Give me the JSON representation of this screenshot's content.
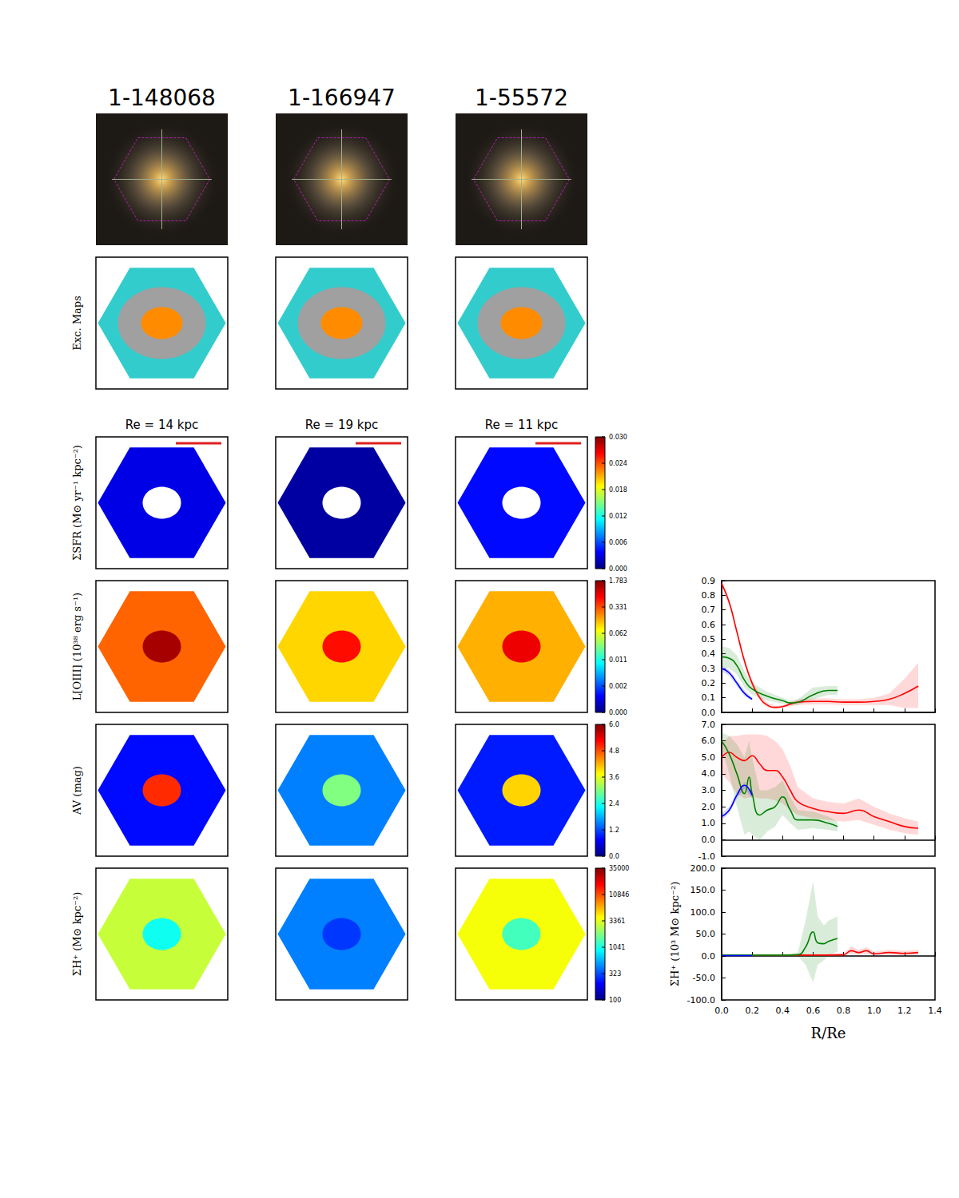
{
  "figure": {
    "row_labels": {
      "exc": "Exc. Maps",
      "sfr": "ΣSFR (M⊙ yr⁻¹ kpc⁻²)",
      "oiii": "L[OIII] (10³⁸ erg s⁻¹)",
      "av": "AV (mag)",
      "sigma_h": "ΣH⁺ (M⊙ kpc⁻²)"
    },
    "exc_map_colors": {
      "outer": "#33cccc",
      "ring": "#a0a0a0",
      "core": "#ff8c00"
    },
    "galaxies": [
      {
        "id": "1-148068",
        "re_label": "Re = 14 kpc",
        "maps": {
          "sfr": {
            "disk": 0.003,
            "center": null
          },
          "oiii": {
            "disk": 0.3,
            "center": 1.5
          },
          "av": {
            "disk": 0.8,
            "center": 5.0
          },
          "sigma_h": {
            "disk": 3000,
            "center": 1000
          }
        }
      },
      {
        "id": "1-166947",
        "re_label": "Re = 19 kpc",
        "maps": {
          "sfr": {
            "disk": 0.001,
            "center": null
          },
          "oiii": {
            "disk": 0.15,
            "center": 0.8
          },
          "av": {
            "disk": 1.5,
            "center": 3.0
          },
          "sigma_h": {
            "disk": 500,
            "center": 300
          }
        }
      },
      {
        "id": "1-55572",
        "re_label": "Re = 11 kpc",
        "maps": {
          "sfr": {
            "disk": 0.004,
            "center": null
          },
          "oiii": {
            "disk": 0.2,
            "center": 1.0
          },
          "av": {
            "disk": 0.9,
            "center": 4.0
          },
          "sigma_h": {
            "disk": 4000,
            "center": 1500
          }
        }
      }
    ],
    "colorbars": {
      "sfr": [
        {
          "value": 0,
          "label": "0.000"
        },
        {
          "value": 0.006,
          "label": "0.006"
        },
        {
          "value": 0.012,
          "label": "0.012"
        },
        {
          "value": 0.018,
          "label": "0.018"
        },
        {
          "value": 0.024,
          "label": "0.024"
        },
        {
          "value": 0.03,
          "label": "0.030"
        }
      ],
      "oiii": [
        {
          "value": 0,
          "label": "0.000"
        },
        {
          "value": 0.002,
          "label": "0.002"
        },
        0.011,
        0.062,
        0.331,
        1.783
      ],
      "av": [
        {
          "value": 0,
          "label": "0.0"
        },
        1.2,
        2.4,
        3.6,
        4.8,
        {
          "value": 6,
          "label": "6.0"
        }
      ],
      "sigma_h": [
        100,
        323,
        1041,
        3361,
        10846,
        35000
      ]
    }
  },
  "chart_data": [
    {
      "type": "line",
      "xlim": [
        0,
        1.4
      ],
      "xticks": [
        {
          "value": 0,
          "label": "0.0"
        },
        0.2,
        0.4,
        0.6,
        0.8,
        {
          "value": 1,
          "label": "1.0"
        },
        1.2,
        1.4
      ],
      "ylim": [
        0,
        0.9
      ],
      "yticks": [
        {
          "value": 0,
          "label": "0.0"
        },
        0.1,
        0.2,
        0.3,
        0.4,
        0.5,
        0.6,
        0.7,
        0.8,
        0.9
      ],
      "tick_labels": "y",
      "grid": false,
      "series": [
        {
          "color": "#ff0000",
          "x": [
            0,
            0.05,
            0.1,
            0.15,
            0.2,
            0.25,
            0.3,
            0.35,
            0.4,
            0.5,
            0.6,
            0.7,
            0.8,
            0.9,
            1.0,
            1.1,
            1.2,
            1.29
          ],
          "values": [
            0.88,
            0.75,
            0.55,
            0.35,
            0.2,
            0.1,
            0.05,
            0.035,
            0.04,
            0.07,
            0.075,
            0.075,
            0.07,
            0.07,
            0.075,
            0.09,
            0.13,
            0.18
          ],
          "lower": [
            0.86,
            0.73,
            0.53,
            0.33,
            0.18,
            0.08,
            0.035,
            0.025,
            0.03,
            0.05,
            0.055,
            0.055,
            0.05,
            0.05,
            0.05,
            0.05,
            0.03,
            0.03
          ],
          "upper": [
            0.9,
            0.77,
            0.57,
            0.37,
            0.22,
            0.12,
            0.065,
            0.045,
            0.05,
            0.09,
            0.095,
            0.095,
            0.09,
            0.09,
            0.1,
            0.13,
            0.23,
            0.34
          ]
        },
        {
          "color": "#008000",
          "x": [
            0,
            0.05,
            0.1,
            0.15,
            0.2,
            0.3,
            0.4,
            0.45,
            0.5,
            0.6,
            0.7,
            0.76
          ],
          "values": [
            0.38,
            0.37,
            0.32,
            0.22,
            0.16,
            0.11,
            0.08,
            0.065,
            0.07,
            0.12,
            0.15,
            0.15
          ],
          "lower": [
            0.31,
            0.3,
            0.26,
            0.17,
            0.12,
            0.08,
            0.06,
            0.05,
            0.05,
            0.09,
            0.12,
            0.12
          ],
          "upper": [
            0.45,
            0.44,
            0.39,
            0.28,
            0.2,
            0.14,
            0.1,
            0.08,
            0.09,
            0.17,
            0.18,
            0.18
          ]
        },
        {
          "color": "#0000ff",
          "x": [
            0,
            0.05,
            0.1,
            0.15,
            0.2
          ],
          "values": [
            0.3,
            0.27,
            0.2,
            0.13,
            0.09
          ],
          "lower": [
            0.28,
            0.25,
            0.18,
            0.11,
            0.08
          ],
          "upper": [
            0.32,
            0.29,
            0.22,
            0.15,
            0.1
          ]
        }
      ]
    },
    {
      "type": "line",
      "xlim": [
        0,
        1.4
      ],
      "xticks": [
        {
          "value": 0,
          "label": "0.0"
        },
        0.2,
        0.4,
        0.6,
        0.8,
        {
          "value": 1,
          "label": "1.0"
        },
        1.2,
        1.4
      ],
      "ylim": [
        -1,
        7
      ],
      "yticks": [
        {
          "value": -1,
          "label": "-1.0"
        },
        {
          "value": 0,
          "label": "0.0"
        },
        {
          "value": 1,
          "label": "1.0"
        },
        {
          "value": 2,
          "label": "2.0"
        },
        {
          "value": 3,
          "label": "3.0"
        },
        {
          "value": 4,
          "label": "4.0"
        },
        {
          "value": 5,
          "label": "5.0"
        },
        {
          "value": 6,
          "label": "6.0"
        },
        {
          "value": 7,
          "label": "7.0"
        }
      ],
      "tick_labels": "y",
      "grid": false,
      "series": [
        {
          "color": "#ff0000",
          "x": [
            0,
            0.05,
            0.1,
            0.15,
            0.2,
            0.25,
            0.3,
            0.35,
            0.4,
            0.45,
            0.5,
            0.6,
            0.7,
            0.8,
            0.9,
            1.0,
            1.1,
            1.2,
            1.29
          ],
          "values": [
            5.0,
            5.3,
            5.0,
            4.8,
            5.1,
            4.6,
            4.2,
            4.2,
            3.8,
            3.0,
            2.3,
            1.9,
            1.7,
            1.6,
            1.8,
            1.4,
            1.1,
            0.8,
            0.7
          ],
          "lower": [
            4.0,
            3.5,
            2.8,
            2.5,
            2.6,
            2.5,
            2.5,
            2.4,
            2.2,
            1.8,
            1.5,
            1.3,
            1.2,
            1.1,
            1.2,
            0.9,
            0.6,
            0.4,
            0.3
          ],
          "upper": [
            5.8,
            6.3,
            6.3,
            6.4,
            6.4,
            6.4,
            6.3,
            6.0,
            5.5,
            4.5,
            3.2,
            2.5,
            2.3,
            2.2,
            2.5,
            2.0,
            1.6,
            1.3,
            1.1
          ]
        },
        {
          "color": "#008000",
          "x": [
            0,
            0.05,
            0.1,
            0.15,
            0.18,
            0.2,
            0.25,
            0.3,
            0.35,
            0.4,
            0.45,
            0.5,
            0.6,
            0.7,
            0.76
          ],
          "values": [
            6.0,
            5.2,
            4.0,
            2.8,
            3.8,
            2.8,
            1.5,
            1.8,
            2.0,
            2.6,
            1.8,
            1.2,
            1.2,
            1.0,
            0.8
          ],
          "lower": [
            5.5,
            4.0,
            2.0,
            0.3,
            0.5,
            0.3,
            0.0,
            0.5,
            0.8,
            1.5,
            1.0,
            0.6,
            0.7,
            0.6,
            0.5
          ],
          "upper": [
            6.5,
            6.3,
            5.8,
            5.0,
            6.0,
            5.0,
            3.0,
            3.0,
            3.2,
            3.6,
            2.6,
            1.8,
            1.7,
            1.4,
            1.1
          ]
        },
        {
          "color": "#0000ff",
          "x": [
            0,
            0.05,
            0.1,
            0.15,
            0.2
          ],
          "values": [
            1.4,
            1.8,
            2.7,
            3.3,
            2.7
          ],
          "lower": [
            1.2,
            1.6,
            2.5,
            3.1,
            2.5
          ],
          "upper": [
            1.6,
            2.0,
            2.9,
            3.5,
            2.9
          ]
        }
      ]
    },
    {
      "type": "line",
      "xlabel": "R/Re",
      "ylabel": "ΣH⁺ (10³ M⊙ kpc⁻²)",
      "xlim": [
        0,
        1.4
      ],
      "xticks": [
        {
          "value": 0,
          "label": "0.0"
        },
        0.2,
        0.4,
        0.6,
        0.8,
        {
          "value": 1,
          "label": "1.0"
        },
        1.2,
        1.4
      ],
      "ylim": [
        -100,
        200
      ],
      "yticks": [
        {
          "value": -100,
          "label": "-100.0"
        },
        {
          "value": -50,
          "label": "-50.0"
        },
        {
          "value": 0,
          "label": "0.0"
        },
        {
          "value": 50,
          "label": "50.0"
        },
        {
          "value": 100,
          "label": "100.0"
        },
        {
          "value": 150,
          "label": "150.0"
        },
        {
          "value": 200,
          "label": "200.0"
        }
      ],
      "grid": false,
      "series": [
        {
          "color": "#ff0000",
          "x": [
            0,
            0.2,
            0.4,
            0.6,
            0.8,
            0.85,
            0.9,
            0.95,
            1.0,
            1.1,
            1.2,
            1.29
          ],
          "values": [
            2,
            2,
            2,
            2,
            3,
            12,
            8,
            12,
            5,
            8,
            6,
            8
          ],
          "lower": [
            1,
            1,
            1,
            1,
            1,
            4,
            3,
            4,
            2,
            3,
            2,
            3
          ],
          "upper": [
            3,
            3,
            3,
            3,
            6,
            22,
            14,
            20,
            10,
            14,
            12,
            14
          ]
        },
        {
          "color": "#008000",
          "x": [
            0,
            0.2,
            0.4,
            0.5,
            0.55,
            0.6,
            0.63,
            0.67,
            0.7,
            0.76
          ],
          "values": [
            2,
            2,
            2,
            3,
            20,
            55,
            30,
            28,
            33,
            40
          ],
          "lower": [
            1,
            1,
            1,
            0,
            -20,
            -60,
            -20,
            -10,
            0,
            10
          ],
          "upper": [
            3,
            3,
            3,
            8,
            80,
            170,
            90,
            70,
            80,
            90
          ]
        },
        {
          "color": "#0000ff",
          "x": [
            0,
            0.2
          ],
          "values": [
            1,
            1
          ],
          "lower": [
            0,
            0
          ],
          "upper": [
            2,
            2
          ]
        }
      ]
    }
  ]
}
